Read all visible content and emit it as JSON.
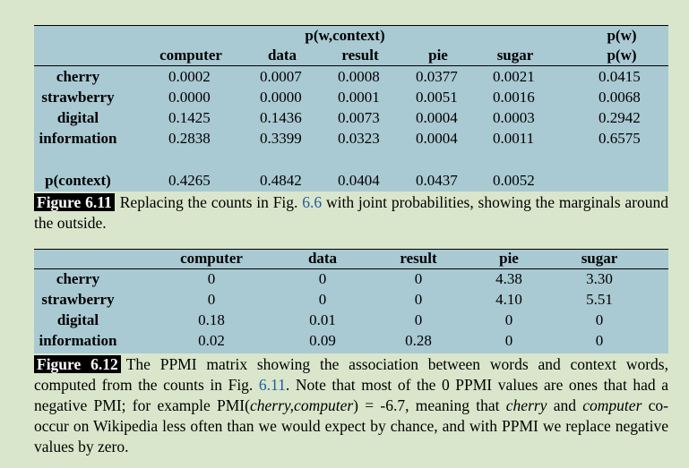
{
  "table1": {
    "group_header": "p(w,context)",
    "pw_header_top": "p(w)",
    "pw_header": "p(w)",
    "columns": [
      "computer",
      "data",
      "result",
      "pie",
      "sugar"
    ],
    "rows": [
      {
        "word": "cherry",
        "values": [
          "0.0002",
          "0.0007",
          "0.0008",
          "0.0377",
          "0.0021"
        ],
        "pw": "0.0415"
      },
      {
        "word": "strawberry",
        "values": [
          "0.0000",
          "0.0000",
          "0.0001",
          "0.0051",
          "0.0016"
        ],
        "pw": "0.0068"
      },
      {
        "word": "digital",
        "values": [
          "0.1425",
          "0.1436",
          "0.0073",
          "0.0004",
          "0.0003"
        ],
        "pw": "0.2942"
      },
      {
        "word": "information",
        "values": [
          "0.2838",
          "0.3399",
          "0.0323",
          "0.0004",
          "0.0011"
        ],
        "pw": "0.6575"
      }
    ],
    "pcontext_label": "p(context)",
    "pcontext_values": [
      "0.4265",
      "0.4842",
      "0.0404",
      "0.0437",
      "0.0052"
    ]
  },
  "caption1": {
    "label": "Figure 6.11",
    "text_a": "Replacing the counts in Fig. ",
    "ref": "6.6",
    "text_b": " with joint probabilities, showing the marginals around the outside."
  },
  "table2": {
    "columns": [
      "computer",
      "data",
      "result",
      "pie",
      "sugar"
    ],
    "rows": [
      {
        "word": "cherry",
        "values": [
          "0",
          "0",
          "0",
          "4.38",
          "3.30"
        ]
      },
      {
        "word": "strawberry",
        "values": [
          "0",
          "0",
          "0",
          "4.10",
          "5.51"
        ]
      },
      {
        "word": "digital",
        "values": [
          "0.18",
          "0.01",
          "0",
          "0",
          "0"
        ]
      },
      {
        "word": "information",
        "values": [
          "0.02",
          "0.09",
          "0.28",
          "0",
          "0"
        ]
      }
    ]
  },
  "caption2": {
    "label": "Figure 6.12",
    "text_a": "The PPMI matrix showing the association between words and context words, computed from the counts in Fig. ",
    "ref": "6.11",
    "text_b": ". Note that most of the 0 PPMI values are ones that had a negative PMI; for example PMI(",
    "italic_1": "cherry,computer",
    "text_c": ") = -6.7, meaning that ",
    "italic_2": "cherry",
    "text_d": " and ",
    "italic_3": "computer",
    "text_e": " co-occur on Wikipedia less often than we would expect by chance, and with PPMI we replace negative values by zero."
  }
}
